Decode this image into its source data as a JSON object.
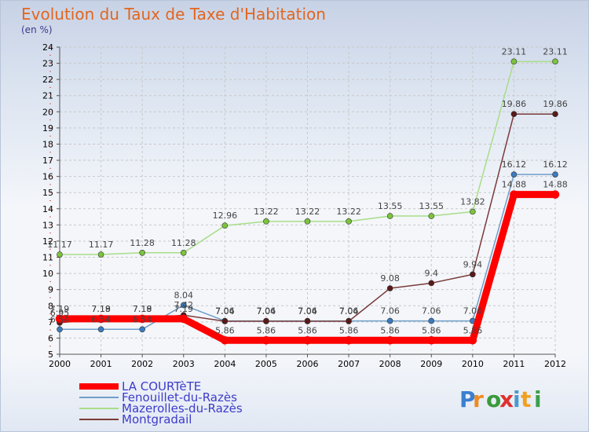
{
  "chart_data": {
    "type": "line",
    "title": "Evolution du Taux de Taxe d'Habitation",
    "subtitle": "(en %)",
    "x": [
      "2000",
      "2001",
      "2002",
      "2003",
      "2004",
      "2005",
      "2006",
      "2007",
      "2008",
      "2009",
      "2010",
      "2011",
      "2012"
    ],
    "ylim": [
      5,
      24
    ],
    "yticks": [
      5,
      6,
      7,
      8,
      9,
      10,
      11,
      12,
      13,
      14,
      15,
      16,
      17,
      18,
      19,
      20,
      21,
      22,
      23,
      24
    ],
    "grid": true,
    "legend_position": "bottom-left",
    "series": [
      {
        "name": "LA COURTèTE",
        "color": "#ff0000",
        "point_color": "#ff0000",
        "values": [
          7.19,
          7.19,
          7.19,
          7.19,
          5.86,
          5.86,
          5.86,
          5.86,
          5.86,
          5.86,
          5.86,
          14.88,
          14.88
        ],
        "labels": [
          "7.19",
          "7.19",
          "7.19",
          "7.19",
          "5.86",
          "5.86",
          "5.86",
          "5.86",
          "5.86",
          "5.86",
          "5.86",
          "14.88",
          "14.88"
        ]
      },
      {
        "name": "Fenouillet-du-Razès",
        "color": "#6f9ec9",
        "point_color": "#3a7bc0",
        "values": [
          6.54,
          6.54,
          6.54,
          8.04,
          7.06,
          7.06,
          7.06,
          7.06,
          7.06,
          7.06,
          7.06,
          16.12,
          16.12
        ],
        "labels": [
          "6.54",
          "6.54",
          "6.54",
          "8.04",
          "7.06",
          "7.06",
          "7.06",
          "7.06",
          "7.06",
          "7.06",
          "7.06",
          "16.12",
          "16.12"
        ]
      },
      {
        "name": "Mazerolles-du-Razès",
        "color": "#a8dd88",
        "point_color": "#7cc43c",
        "values": [
          11.17,
          11.17,
          11.28,
          11.28,
          12.96,
          13.22,
          13.22,
          13.22,
          13.55,
          13.55,
          13.82,
          23.11,
          23.11
        ],
        "labels": [
          "11.17",
          "11.17",
          "11.28",
          "11.28",
          "12.96",
          "13.22",
          "13.22",
          "13.22",
          "13.55",
          "13.55",
          "13.82",
          "23.11",
          "23.11"
        ]
      },
      {
        "name": "Montgradail",
        "color": "#7a3a3a",
        "point_color": "#5a1a1a",
        "values": [
          6.95,
          7.18,
          7.18,
          7.42,
          7.04,
          7.04,
          7.04,
          7.04,
          9.08,
          9.4,
          9.94,
          19.86,
          19.86
        ],
        "labels": [
          "6.95",
          "7.18",
          "7.18",
          "7.42",
          "7.04",
          "7.04",
          "7.04",
          "7.04",
          "9.08",
          "9.4",
          "9.94",
          "19.86",
          "19.86"
        ]
      }
    ]
  },
  "logo": {
    "text": "Proxiti"
  }
}
